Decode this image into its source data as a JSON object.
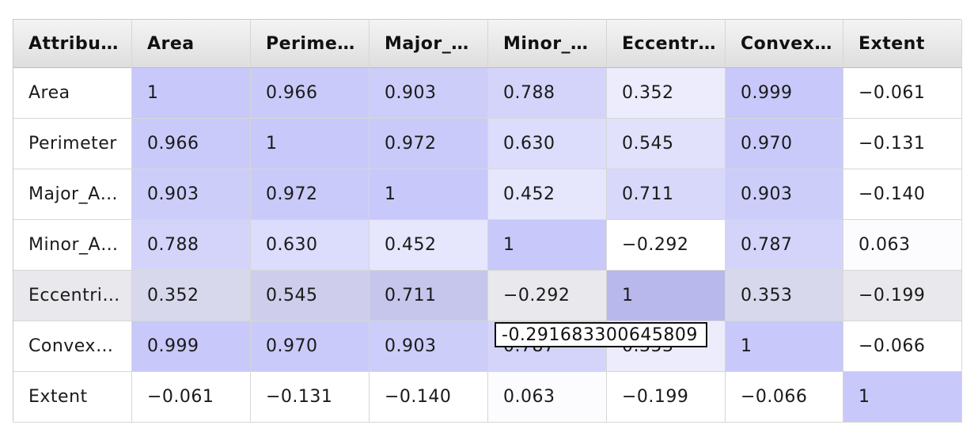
{
  "headers": [
    "Attribu…",
    "Area",
    "Perime…",
    "Major_…",
    "Minor_…",
    "Eccentr…",
    "Convex…",
    "Extent"
  ],
  "rows": [
    {
      "label": "Area",
      "cells": [
        "1",
        "0.966",
        "0.903",
        "0.788",
        "0.352",
        "0.999",
        "−0.061"
      ],
      "raw": [
        1,
        0.966,
        0.903,
        0.788,
        0.352,
        0.999,
        -0.061
      ]
    },
    {
      "label": "Perimeter",
      "cells": [
        "0.966",
        "1",
        "0.972",
        "0.630",
        "0.545",
        "0.970",
        "−0.131"
      ],
      "raw": [
        0.966,
        1,
        0.972,
        0.63,
        0.545,
        0.97,
        -0.131
      ]
    },
    {
      "label": "Major_A…",
      "cells": [
        "0.903",
        "0.972",
        "1",
        "0.452",
        "0.711",
        "0.903",
        "−0.140"
      ],
      "raw": [
        0.903,
        0.972,
        1,
        0.452,
        0.711,
        0.903,
        -0.14
      ]
    },
    {
      "label": "Minor_A…",
      "cells": [
        "0.788",
        "0.630",
        "0.452",
        "1",
        "−0.292",
        "0.787",
        "0.063"
      ],
      "raw": [
        0.788,
        0.63,
        0.452,
        1,
        -0.292,
        0.787,
        0.063
      ]
    },
    {
      "label": "Eccentri…",
      "cells": [
        "0.352",
        "0.545",
        "0.711",
        "−0.292",
        "1",
        "0.353",
        "−0.199"
      ],
      "raw": [
        0.352,
        0.545,
        0.711,
        -0.292,
        1,
        0.353,
        -0.199
      ]
    },
    {
      "label": "Convex…",
      "cells": [
        "0.999",
        "0.970",
        "0.903",
        "0.787",
        "0.353",
        "1",
        "−0.066"
      ],
      "raw": [
        0.999,
        0.97,
        0.903,
        0.787,
        0.353,
        1,
        -0.066
      ]
    },
    {
      "label": "Extent",
      "cells": [
        "−0.061",
        "−0.131",
        "−0.140",
        "0.063",
        "−0.199",
        "−0.066",
        "1"
      ],
      "raw": [
        -0.061,
        -0.131,
        -0.14,
        0.063,
        -0.199,
        -0.066,
        1
      ]
    }
  ],
  "selected_row": 4,
  "tooltip": {
    "text": "-0.291683300645809"
  },
  "colors": {
    "heat_max": "#c8c8fa",
    "heat_min": "#ffffff",
    "row_selected": "#e9e9ed",
    "header_top": "#f4f4f4",
    "header_bottom": "#dedede"
  }
}
